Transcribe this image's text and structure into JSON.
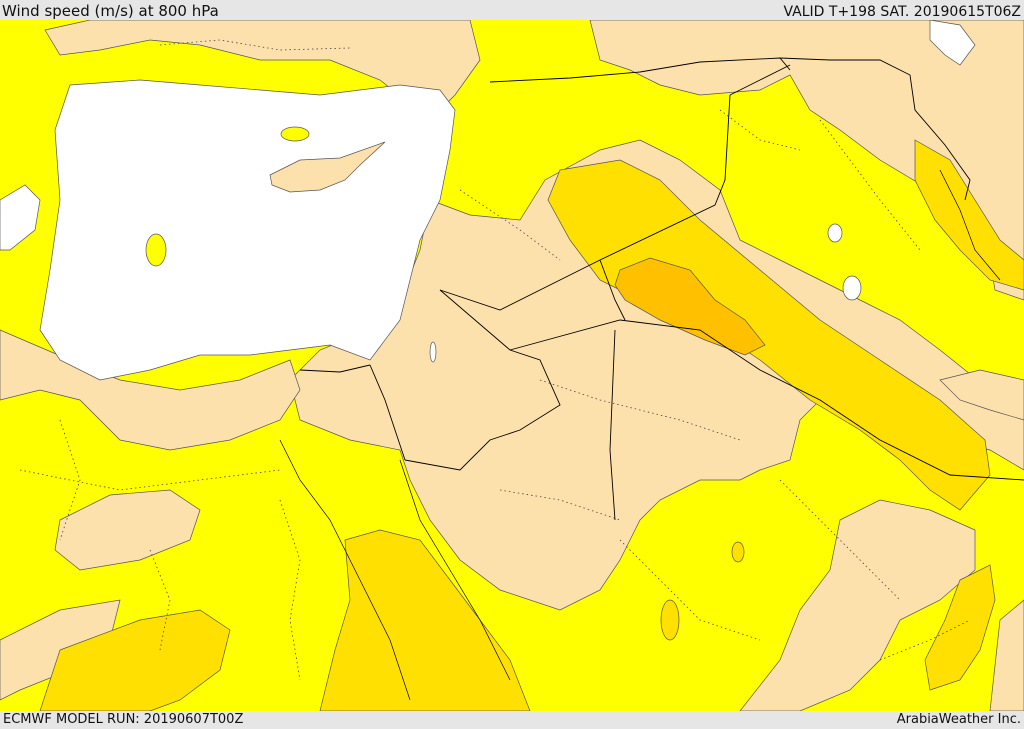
{
  "header": {
    "title": "Wind speed (m/s) at 800 hPa",
    "valid": "VALID T+198 SAT. 20190615T06Z"
  },
  "footer": {
    "model_run": "ECMWF MODEL RUN: 20190607T00Z",
    "credit": "ArabiaWeather Inc."
  },
  "map": {
    "colors": {
      "calm": "#fde1ad",
      "light": "#ffff00",
      "moderate": "#ffe000",
      "strong": "#ffc000",
      "mask": "#ffffff",
      "ink": "#000000"
    }
  }
}
